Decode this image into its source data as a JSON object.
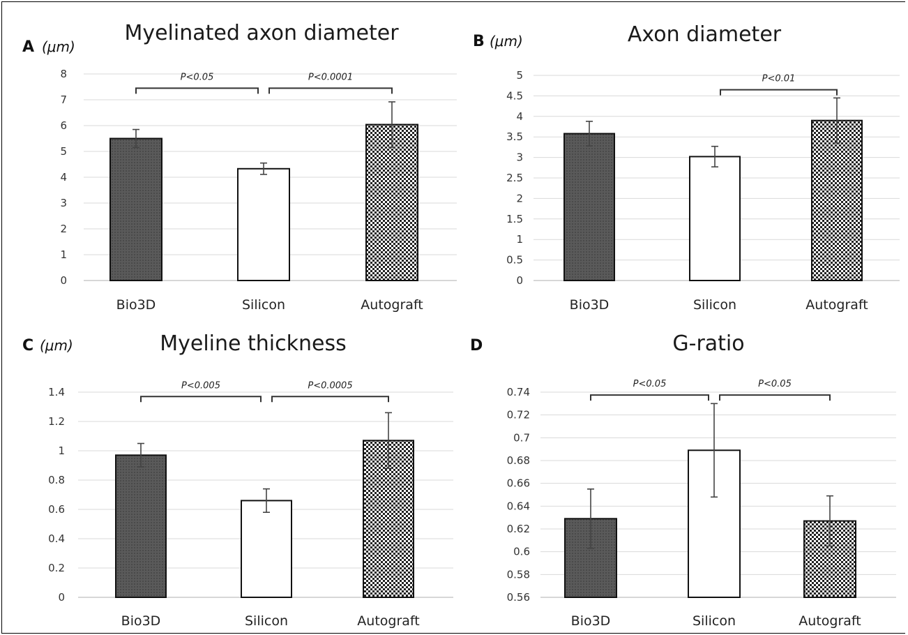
{
  "chart_data": [
    {
      "panel": "A",
      "unit": "(μm)",
      "type": "bar",
      "title": "Myelinated axon diameter",
      "categories": [
        "Bio3D",
        "Silicon",
        "Autograft"
      ],
      "values": [
        5.5,
        4.33,
        6.04
      ],
      "errors": [
        0.35,
        0.22,
        0.88
      ],
      "ylim": [
        0,
        8
      ],
      "yticks": [
        0,
        1,
        2,
        3,
        4,
        5,
        6,
        7,
        8
      ],
      "ytick_labels": [
        "0",
        "1",
        "2",
        "3",
        "4",
        "5",
        "6",
        "7",
        "8"
      ],
      "grid": true,
      "significance": [
        {
          "from": 0,
          "to": 1,
          "label": "P<0.05",
          "y": 7.45
        },
        {
          "from": 1,
          "to": 2,
          "label": "P<0.0001",
          "y": 7.45
        }
      ]
    },
    {
      "panel": "B",
      "unit": "(μm)",
      "type": "bar",
      "title": "Axon diameter",
      "categories": [
        "Bio3D",
        "Silicon",
        "Autograft"
      ],
      "values": [
        3.58,
        3.02,
        3.9
      ],
      "errors": [
        0.3,
        0.25,
        0.55
      ],
      "ylim": [
        0,
        5
      ],
      "yticks": [
        0,
        0.5,
        1,
        1.5,
        2,
        2.5,
        3,
        3.5,
        4,
        4.5,
        5
      ],
      "ytick_labels": [
        "0",
        "0.5",
        "1",
        "1.5",
        "2",
        "2.5",
        "3",
        "3.5",
        "4",
        "4.5",
        "5"
      ],
      "grid": true,
      "significance": [
        {
          "from": 1,
          "to": 2,
          "label": "P<0.01",
          "y": 4.65
        }
      ]
    },
    {
      "panel": "C",
      "unit": "(μm)",
      "type": "bar",
      "title": "Myeline thickness",
      "categories": [
        "Bio3D",
        "Silicon",
        "Autograft"
      ],
      "values": [
        0.97,
        0.66,
        1.07
      ],
      "errors": [
        0.08,
        0.08,
        0.19
      ],
      "ylim": [
        0,
        1.4
      ],
      "yticks": [
        0,
        0.2,
        0.4,
        0.6,
        0.8,
        1,
        1.2,
        1.4
      ],
      "ytick_labels": [
        "0",
        "0.2",
        "0.4",
        "0.6",
        "0.8",
        "1",
        "1.2",
        "1.4"
      ],
      "grid": true,
      "significance": [
        {
          "from": 0,
          "to": 1,
          "label": "P<0.005",
          "y": 1.37
        },
        {
          "from": 1,
          "to": 2,
          "label": "P<0.0005",
          "y": 1.37
        }
      ]
    },
    {
      "panel": "D",
      "unit": "",
      "type": "bar",
      "title": "G-ratio",
      "categories": [
        "Bio3D",
        "Silicon",
        "Autograft"
      ],
      "values": [
        0.629,
        0.689,
        0.627
      ],
      "errors": [
        0.026,
        0.041,
        0.022
      ],
      "ylim": [
        0.56,
        0.74
      ],
      "yticks": [
        0.56,
        0.58,
        0.6,
        0.62,
        0.64,
        0.66,
        0.68,
        0.7,
        0.72,
        0.74
      ],
      "ytick_labels": [
        "0.56",
        "0.58",
        "0.6",
        "0.62",
        "0.64",
        "0.66",
        "0.68",
        "0.7",
        "0.72",
        "0.74"
      ],
      "grid": true,
      "significance": [
        {
          "from": 0,
          "to": 1,
          "label": "P<0.05",
          "y": 0.7375
        },
        {
          "from": 1,
          "to": 2,
          "label": "P<0.05",
          "y": 0.7375
        }
      ]
    }
  ],
  "bar_fills": [
    "#5a5a5a",
    "#ffffff",
    "checker"
  ]
}
